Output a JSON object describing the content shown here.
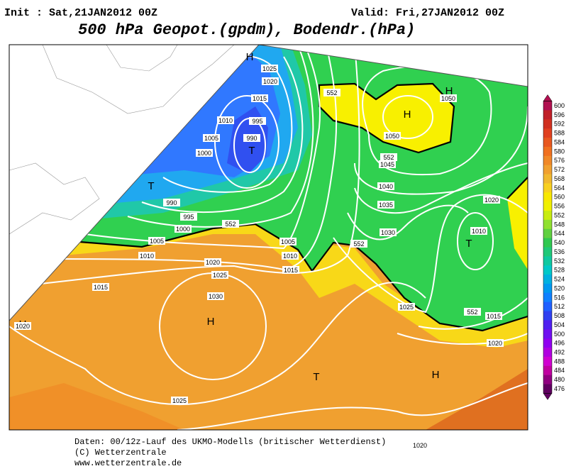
{
  "header": {
    "init": "Init : Sat,21JAN2012 00Z",
    "valid": "Valid: Fri,27JAN2012 00Z",
    "title": "500 hPa Geopot.(gpdm), Bodendr.(hPa)"
  },
  "map_labels": [
    "H",
    "1025",
    "1020",
    "1015",
    "1010",
    "995",
    "1005",
    "990",
    "T",
    "1000",
    "T",
    "990",
    "995",
    "1000",
    "1005",
    "1010",
    "1005",
    "1010",
    "1015",
    "1020",
    "1025",
    "1015",
    "1030",
    "H",
    "H",
    "1020",
    "1025",
    "1020",
    "T",
    "H",
    "1020",
    "1015",
    "1025",
    "1030",
    "1035",
    "1040",
    "1045",
    "1050",
    "H",
    "H",
    "1050",
    "1020",
    "1010",
    "T",
    "552",
    "552",
    "552",
    "552",
    "552"
  ],
  "colorbar": {
    "ticks": [
      "600",
      "596",
      "592",
      "588",
      "584",
      "580",
      "576",
      "572",
      "568",
      "564",
      "560",
      "556",
      "552",
      "548",
      "544",
      "540",
      "536",
      "532",
      "528",
      "524",
      "520",
      "516",
      "512",
      "508",
      "504",
      "500",
      "496",
      "492",
      "488",
      "484",
      "480",
      "476"
    ],
    "colors": [
      "#b01050",
      "#c02028",
      "#d03020",
      "#e04020",
      "#e85820",
      "#f07020",
      "#f08828",
      "#f0a030",
      "#f0b830",
      "#f8d020",
      "#f8e800",
      "#f0f000",
      "#c8ec10",
      "#90e030",
      "#60d040",
      "#30c850",
      "#20c878",
      "#10c8a0",
      "#00c8c8",
      "#00b0e0",
      "#0098f0",
      "#1080ff",
      "#2060ff",
      "#3040f0",
      "#5020f0",
      "#7010f0",
      "#9000f0",
      "#b000e0",
      "#d000d0",
      "#c000a0",
      "#900080",
      "#600060"
    ]
  },
  "footer": [
    "Daten: 00/12z-Lauf des UKMO-Modells (britischer Wetterdienst)",
    "(C) Wetterzentrale",
    "www.wetterzentrale.de"
  ]
}
